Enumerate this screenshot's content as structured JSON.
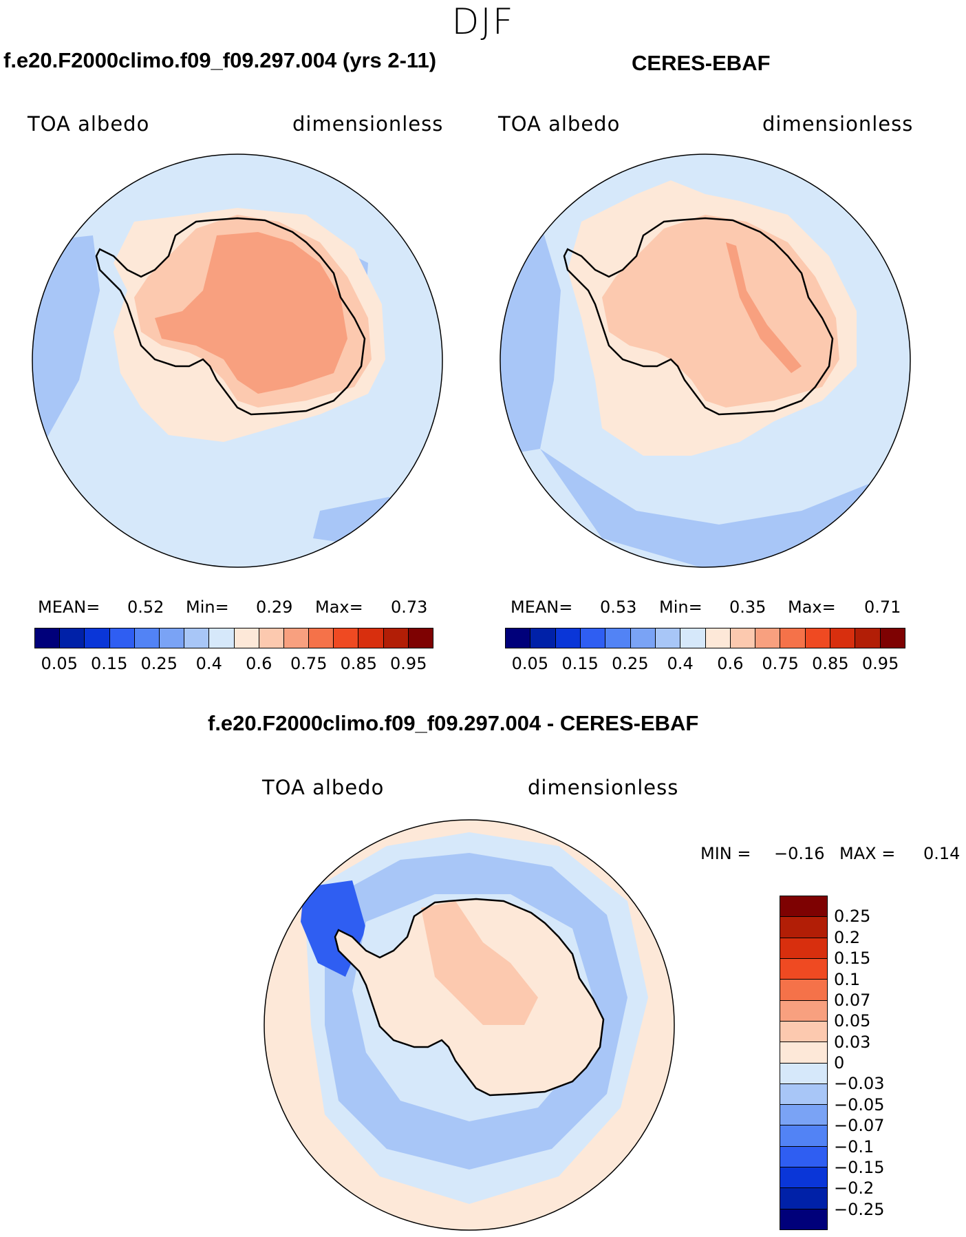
{
  "season": "DJF",
  "colors": {
    "levels16": [
      "#00007a",
      "#0021a8",
      "#0a36d8",
      "#2f5ef2",
      "#5283f5",
      "#7aa3f5",
      "#a8c6f7",
      "#d6e8fa",
      "#fde8d8",
      "#fcc9af",
      "#f8a07f",
      "#f57249",
      "#ef4a22",
      "#d82f0e",
      "#b21e06",
      "#7e0202"
    ],
    "diff": [
      "#7e0202",
      "#b21e06",
      "#d82f0e",
      "#ef4a22",
      "#f57249",
      "#f8a07f",
      "#fcc9af",
      "#fde8d8",
      "#d6e8fa",
      "#a8c6f7",
      "#7aa3f5",
      "#5283f5",
      "#2f5ef2",
      "#0a36d8",
      "#0021a8",
      "#00007a"
    ],
    "land": "#000000"
  },
  "panels": {
    "model": {
      "title": "f.e20.F2000climo.f09_f09.297.004 (yrs 2-11)",
      "variable": "TOA albedo",
      "units": "dimensionless",
      "mean_label": "MEAN=",
      "mean": "0.52",
      "min_label": "Min=",
      "min": "0.29",
      "max_label": "Max=",
      "max": "0.73"
    },
    "obs": {
      "title": "CERES-EBAF",
      "variable": "TOA albedo",
      "units": "dimensionless",
      "mean_label": "MEAN=",
      "mean": "0.53",
      "min_label": "Min=",
      "min": "0.35",
      "max_label": "Max=",
      "max": "0.71"
    },
    "diff": {
      "title": "f.e20.F2000climo.f09_f09.297.004 - CERES-EBAF",
      "variable": "TOA albedo",
      "units": "dimensionless",
      "min_label": "MIN =",
      "min": "−0.16",
      "max_label": "MAX =",
      "max": "0.14"
    }
  },
  "chart_data": [
    {
      "type": "heatmap",
      "name": "model",
      "title": "f.e20.F2000climo.f09_f09.297.004 (yrs 2-11)",
      "projection": "south polar stereographic",
      "colorbar_ticks": [
        "0.05",
        "0.15",
        "0.25",
        "0.4",
        "0.6",
        "0.75",
        "0.85",
        "0.95"
      ],
      "colorbar_levels": [
        0.05,
        0.1,
        0.15,
        0.2,
        0.25,
        0.3,
        0.4,
        0.5,
        0.6,
        0.7,
        0.75,
        0.8,
        0.85,
        0.9,
        0.95
      ],
      "stats": {
        "mean": 0.52,
        "min": 0.29,
        "max": 0.73
      }
    },
    {
      "type": "heatmap",
      "name": "obs",
      "title": "CERES-EBAF",
      "projection": "south polar stereographic",
      "colorbar_ticks": [
        "0.05",
        "0.15",
        "0.25",
        "0.4",
        "0.6",
        "0.75",
        "0.85",
        "0.95"
      ],
      "colorbar_levels": [
        0.05,
        0.1,
        0.15,
        0.2,
        0.25,
        0.3,
        0.4,
        0.5,
        0.6,
        0.7,
        0.75,
        0.8,
        0.85,
        0.9,
        0.95
      ],
      "stats": {
        "mean": 0.53,
        "min": 0.35,
        "max": 0.71
      }
    },
    {
      "type": "heatmap",
      "name": "difference",
      "title": "f.e20.F2000climo.f09_f09.297.004 - CERES-EBAF",
      "projection": "south polar stereographic",
      "colorbar_ticks": [
        "0.25",
        "0.2",
        "0.15",
        "0.1",
        "0.07",
        "0.05",
        "0.03",
        "0",
        "−0.03",
        "−0.05",
        "−0.07",
        "−0.1",
        "−0.15",
        "−0.2",
        "−0.25"
      ],
      "colorbar_levels": [
        0.25,
        0.2,
        0.15,
        0.1,
        0.07,
        0.05,
        0.03,
        0,
        -0.03,
        -0.05,
        -0.07,
        -0.1,
        -0.15,
        -0.2,
        -0.25
      ],
      "stats": {
        "min": -0.16,
        "max": 0.14
      }
    }
  ]
}
